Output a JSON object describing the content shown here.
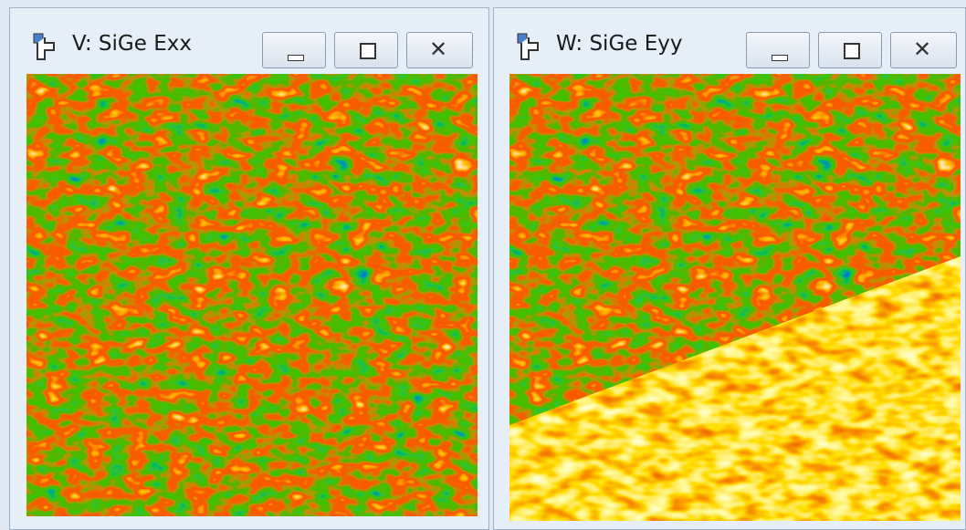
{
  "windows": [
    {
      "title": "V: SiGe Exx"
    },
    {
      "title": "W: SiGe Eyy"
    }
  ]
}
